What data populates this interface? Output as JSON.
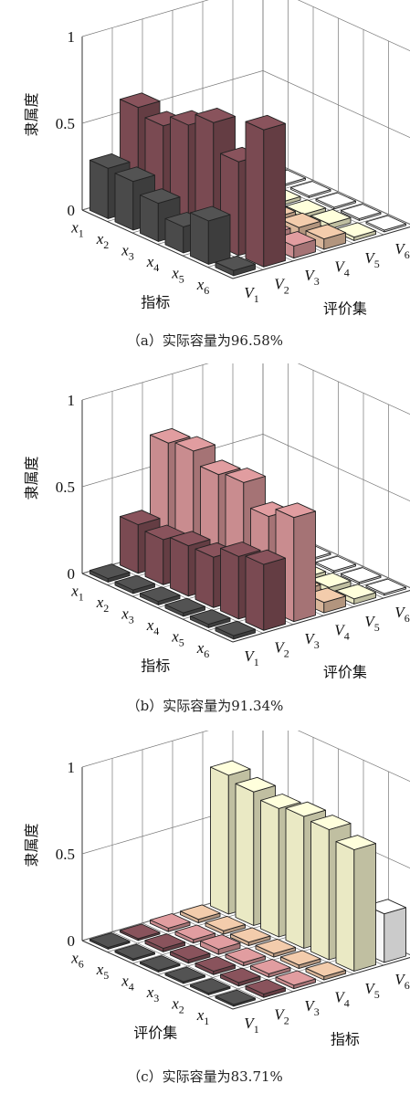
{
  "palette": {
    "V1": "#4a4a4a",
    "V2": "#7a4a52",
    "V3": "#c98c8f",
    "V4": "#d9b69a",
    "V5": "#eae9c4",
    "V6": "#f7f7f7"
  },
  "chart_data": [
    {
      "type": "bar3d",
      "caption": "（a）实际容量为96.58%",
      "ylabel": "隶属度",
      "zlim": [
        0,
        1
      ],
      "zticks": [
        "0",
        "0.5",
        "1"
      ],
      "index_label": "指标",
      "set_label": "评价集",
      "indices": [
        "x1",
        "x2",
        "x3",
        "x4",
        "x5",
        "x6"
      ],
      "grades": [
        "V1",
        "V2",
        "V3",
        "V4",
        "V5",
        "V6"
      ],
      "values": [
        [
          0.29,
          0.59,
          0.05,
          0.04,
          0.02,
          0.01
        ],
        [
          0.28,
          0.55,
          0.06,
          0.05,
          0.03,
          0.01
        ],
        [
          0.22,
          0.62,
          0.07,
          0.04,
          0.02,
          0.01
        ],
        [
          0.15,
          0.7,
          0.06,
          0.05,
          0.02,
          0.01
        ],
        [
          0.25,
          0.54,
          0.07,
          0.06,
          0.03,
          0.01
        ],
        [
          0.03,
          0.79,
          0.07,
          0.06,
          0.02,
          0.01
        ]
      ]
    },
    {
      "type": "bar3d",
      "caption": "（b）实际容量为91.34%",
      "ylabel": "隶属度",
      "zlim": [
        0,
        1
      ],
      "zticks": [
        "0",
        "0.5",
        "1"
      ],
      "index_label": "指标",
      "set_label": "评价集",
      "indices": [
        "x1",
        "x2",
        "x3",
        "x4",
        "x5",
        "x6"
      ],
      "grades": [
        "V1",
        "V2",
        "V3",
        "V4",
        "V5",
        "V6"
      ],
      "values": [
        [
          0.02,
          0.28,
          0.7,
          0.03,
          0.02,
          0.01
        ],
        [
          0.02,
          0.26,
          0.72,
          0.04,
          0.03,
          0.01
        ],
        [
          0.02,
          0.29,
          0.65,
          0.05,
          0.03,
          0.01
        ],
        [
          0.02,
          0.29,
          0.67,
          0.04,
          0.02,
          0.01
        ],
        [
          0.02,
          0.36,
          0.54,
          0.06,
          0.03,
          0.01
        ],
        [
          0.02,
          0.38,
          0.6,
          0.06,
          0.03,
          0.01
        ]
      ]
    },
    {
      "type": "bar3d",
      "caption": "（c）实际容量为83.71%",
      "ylabel": "隶属度",
      "zlim": [
        0,
        1
      ],
      "zticks": [
        "0",
        "0.5",
        "1"
      ],
      "index_label": "指标",
      "set_label": "评价集",
      "indices": [
        "x6",
        "x5",
        "x4",
        "x3",
        "x2",
        "x1"
      ],
      "grades": [
        "V1",
        "V2",
        "V3",
        "V4",
        "V5",
        "V6"
      ],
      "values": [
        [
          0.01,
          0.01,
          0.02,
          0.02,
          0.8,
          0.14
        ],
        [
          0.01,
          0.02,
          0.02,
          0.02,
          0.77,
          0.16
        ],
        [
          0.01,
          0.02,
          0.03,
          0.02,
          0.74,
          0.23
        ],
        [
          0.01,
          0.02,
          0.02,
          0.02,
          0.76,
          0.22
        ],
        [
          0.01,
          0.02,
          0.02,
          0.02,
          0.75,
          0.22
        ],
        [
          0.01,
          0.02,
          0.02,
          0.02,
          0.7,
          0.28
        ]
      ]
    }
  ]
}
